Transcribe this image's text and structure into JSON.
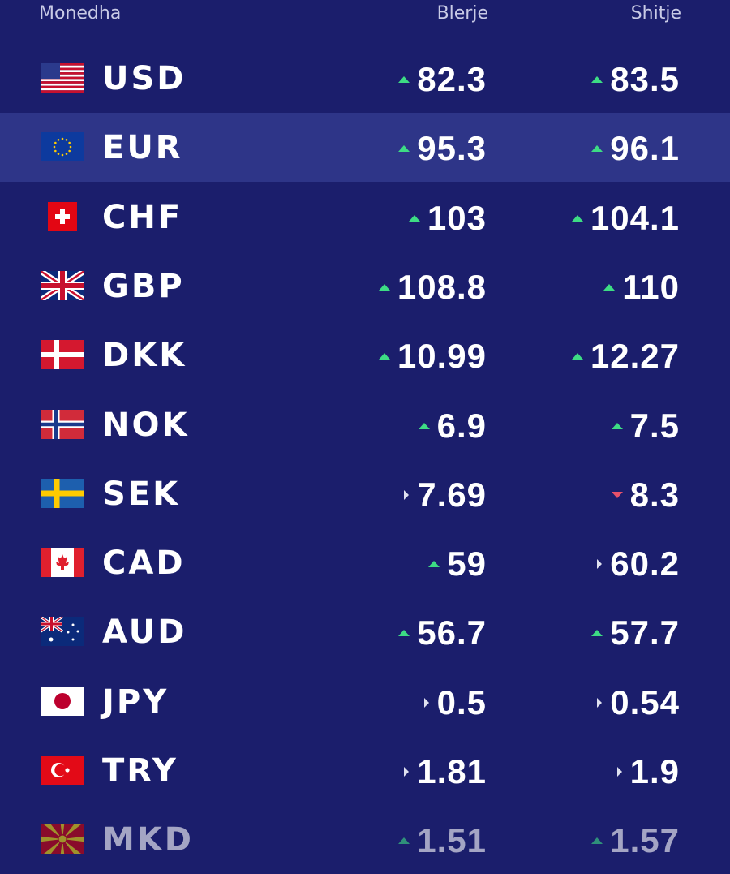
{
  "header": {
    "currency": "Monedha",
    "buy": "Blerje",
    "sell": "Shitje"
  },
  "highlighted_row": 1,
  "rows": [
    {
      "code": "USD",
      "buy": 82.3,
      "buy_trend": "up",
      "sell": 83.5,
      "sell_trend": "up"
    },
    {
      "code": "EUR",
      "buy": 95.3,
      "buy_trend": "up",
      "sell": 96.1,
      "sell_trend": "up"
    },
    {
      "code": "CHF",
      "buy": 103,
      "buy_trend": "up",
      "sell": 104.1,
      "sell_trend": "up"
    },
    {
      "code": "GBP",
      "buy": 108.8,
      "buy_trend": "up",
      "sell": 110,
      "sell_trend": "up"
    },
    {
      "code": "DKK",
      "buy": 10.99,
      "buy_trend": "up",
      "sell": 12.27,
      "sell_trend": "up"
    },
    {
      "code": "NOK",
      "buy": 6.9,
      "buy_trend": "up",
      "sell": 7.5,
      "sell_trend": "up"
    },
    {
      "code": "SEK",
      "buy": 7.69,
      "buy_trend": "flat",
      "sell": 8.3,
      "sell_trend": "down"
    },
    {
      "code": "CAD",
      "buy": 59,
      "buy_trend": "up",
      "sell": 60.2,
      "sell_trend": "flat"
    },
    {
      "code": "AUD",
      "buy": 56.7,
      "buy_trend": "up",
      "sell": 57.7,
      "sell_trend": "up"
    },
    {
      "code": "JPY",
      "buy": 0.5,
      "buy_trend": "flat",
      "sell": 0.54,
      "sell_trend": "flat"
    },
    {
      "code": "TRY",
      "buy": 1.81,
      "buy_trend": "flat",
      "sell": 1.9,
      "sell_trend": "flat"
    },
    {
      "code": "MKD",
      "buy": 1.51,
      "buy_trend": "up",
      "sell": 1.57,
      "sell_trend": "up"
    }
  ]
}
